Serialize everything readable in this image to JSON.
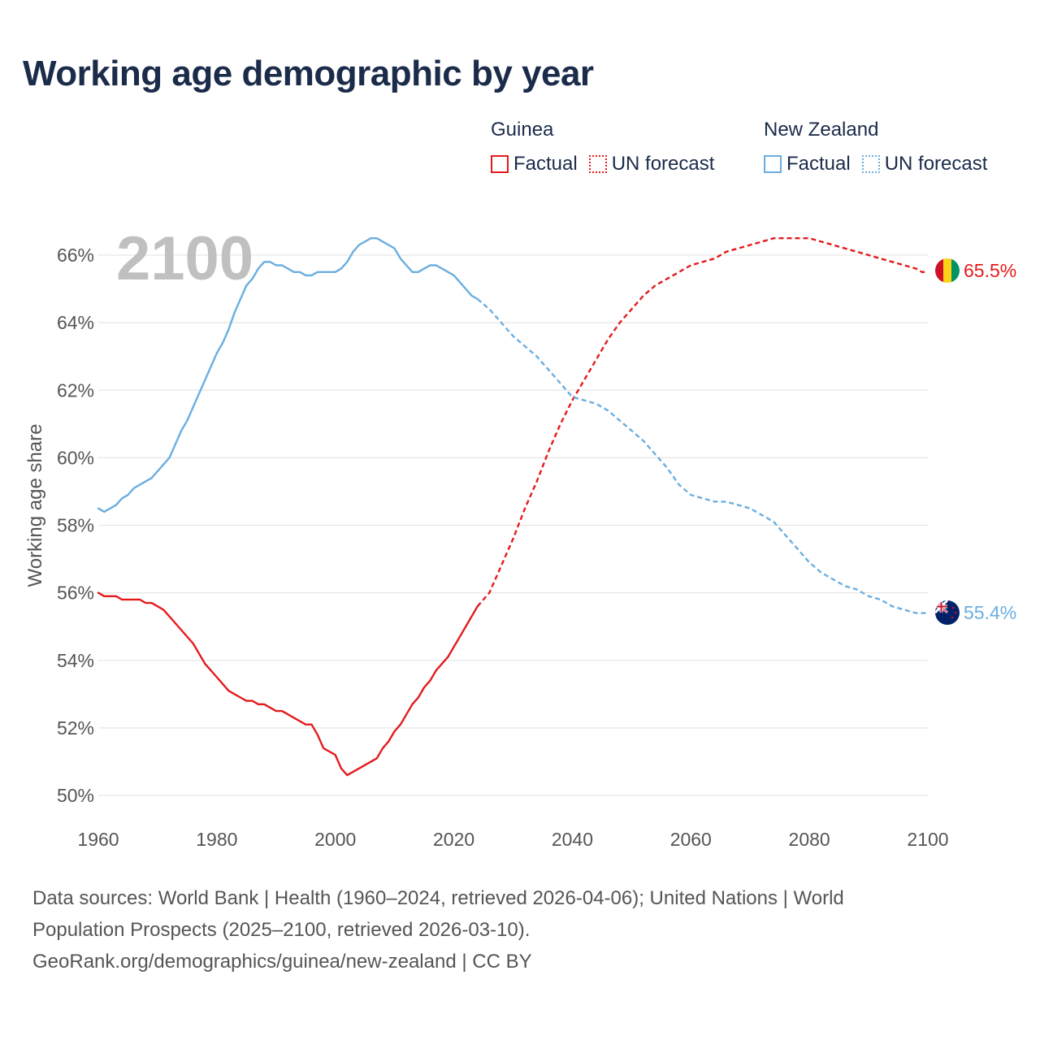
{
  "title": "Working age demographic by year",
  "legend": {
    "guinea": {
      "name": "Guinea",
      "factual": "Factual",
      "forecast": "UN forecast"
    },
    "new_zealand": {
      "name": "New Zealand",
      "factual": "Factual",
      "forecast": "UN forecast"
    }
  },
  "year_label": "2100",
  "sources": {
    "line1": "Data sources: World Bank | Health (1960–2024, retrieved 2026-04-06); United Nations | World",
    "line2": "Population Prospects (2025–2100, retrieved 2026-03-10).",
    "line3": "GeoRank.org/demographics/guinea/new-zealand | CC BY"
  },
  "colors": {
    "guinea": "#e31a1c",
    "new_zealand": "#6aaee0",
    "text": "#1b2b4a",
    "axis_text": "#555555",
    "grid": "#e6e6e6"
  },
  "chart_data": {
    "type": "line",
    "title": "Working age demographic by year",
    "xlabel": "",
    "ylabel": "Working age share",
    "xlim": [
      1960,
      2100
    ],
    "ylim": [
      50,
      67
    ],
    "x_ticks": [
      1960,
      1980,
      2000,
      2020,
      2040,
      2060,
      2080,
      2100
    ],
    "y_ticks": [
      50,
      52,
      54,
      56,
      58,
      60,
      62,
      64,
      66
    ],
    "y_tick_suffix": "%",
    "series": [
      {
        "name": "Guinea",
        "color": "#e31a1c",
        "end_label": "65.5%",
        "flag": "guinea",
        "factual": [
          [
            1960,
            56.0
          ],
          [
            1961,
            55.9
          ],
          [
            1963,
            55.9
          ],
          [
            1964,
            55.8
          ],
          [
            1967,
            55.8
          ],
          [
            1968,
            55.7
          ],
          [
            1969,
            55.7
          ],
          [
            1971,
            55.5
          ],
          [
            1973,
            55.1
          ],
          [
            1976,
            54.5
          ],
          [
            1978,
            53.9
          ],
          [
            1980,
            53.5
          ],
          [
            1982,
            53.1
          ],
          [
            1984,
            52.9
          ],
          [
            1985,
            52.8
          ],
          [
            1986,
            52.8
          ],
          [
            1987,
            52.7
          ],
          [
            1988,
            52.7
          ],
          [
            1990,
            52.5
          ],
          [
            1991,
            52.5
          ],
          [
            1995,
            52.1
          ],
          [
            1996,
            52.1
          ],
          [
            1997,
            51.8
          ],
          [
            1998,
            51.4
          ],
          [
            1999,
            51.3
          ],
          [
            2000,
            51.2
          ],
          [
            2001,
            50.8
          ],
          [
            2002,
            50.6
          ],
          [
            2007,
            51.1
          ],
          [
            2008,
            51.4
          ],
          [
            2009,
            51.6
          ],
          [
            2010,
            51.9
          ],
          [
            2011,
            52.1
          ],
          [
            2012,
            52.4
          ],
          [
            2013,
            52.7
          ],
          [
            2014,
            52.9
          ],
          [
            2015,
            53.2
          ],
          [
            2016,
            53.4
          ],
          [
            2017,
            53.7
          ],
          [
            2019,
            54.1
          ],
          [
            2021,
            54.7
          ],
          [
            2024,
            55.6
          ]
        ],
        "forecast": [
          [
            2024,
            55.6
          ],
          [
            2026,
            56.0
          ],
          [
            2028,
            56.8
          ],
          [
            2030,
            57.6
          ],
          [
            2032,
            58.5
          ],
          [
            2034,
            59.3
          ],
          [
            2036,
            60.2
          ],
          [
            2038,
            61.0
          ],
          [
            2040,
            61.7
          ],
          [
            2042,
            62.3
          ],
          [
            2044,
            62.9
          ],
          [
            2046,
            63.5
          ],
          [
            2048,
            64.0
          ],
          [
            2050,
            64.4
          ],
          [
            2052,
            64.8
          ],
          [
            2054,
            65.1
          ],
          [
            2056,
            65.3
          ],
          [
            2058,
            65.5
          ],
          [
            2060,
            65.7
          ],
          [
            2062,
            65.8
          ],
          [
            2064,
            65.9
          ],
          [
            2066,
            66.1
          ],
          [
            2068,
            66.2
          ],
          [
            2070,
            66.3
          ],
          [
            2072,
            66.4
          ],
          [
            2074,
            66.5
          ],
          [
            2080,
            66.5
          ],
          [
            2082,
            66.4
          ],
          [
            2084,
            66.3
          ],
          [
            2086,
            66.2
          ],
          [
            2088,
            66.1
          ],
          [
            2090,
            66.0
          ],
          [
            2092,
            65.9
          ],
          [
            2094,
            65.8
          ],
          [
            2096,
            65.7
          ],
          [
            2098,
            65.6
          ],
          [
            2099,
            65.5
          ],
          [
            2100,
            65.5
          ]
        ]
      },
      {
        "name": "New Zealand",
        "color": "#6aaee0",
        "end_label": "55.4%",
        "flag": "new-zealand",
        "factual": [
          [
            1960,
            58.5
          ],
          [
            1961,
            58.4
          ],
          [
            1963,
            58.6
          ],
          [
            1964,
            58.8
          ],
          [
            1965,
            58.9
          ],
          [
            1966,
            59.1
          ],
          [
            1967,
            59.2
          ],
          [
            1969,
            59.4
          ],
          [
            1970,
            59.6
          ],
          [
            1971,
            59.8
          ],
          [
            1972,
            60.0
          ],
          [
            1973,
            60.4
          ],
          [
            1974,
            60.8
          ],
          [
            1975,
            61.1
          ],
          [
            1976,
            61.5
          ],
          [
            1977,
            61.9
          ],
          [
            1978,
            62.3
          ],
          [
            1979,
            62.7
          ],
          [
            1980,
            63.1
          ],
          [
            1981,
            63.4
          ],
          [
            1982,
            63.8
          ],
          [
            1983,
            64.3
          ],
          [
            1984,
            64.7
          ],
          [
            1985,
            65.1
          ],
          [
            1986,
            65.3
          ],
          [
            1987,
            65.6
          ],
          [
            1988,
            65.8
          ],
          [
            1989,
            65.8
          ],
          [
            1990,
            65.7
          ],
          [
            1991,
            65.7
          ],
          [
            1993,
            65.5
          ],
          [
            1994,
            65.5
          ],
          [
            1995,
            65.4
          ],
          [
            1996,
            65.4
          ],
          [
            1997,
            65.5
          ],
          [
            2000,
            65.5
          ],
          [
            2001,
            65.6
          ],
          [
            2002,
            65.8
          ],
          [
            2003,
            66.1
          ],
          [
            2004,
            66.3
          ],
          [
            2005,
            66.4
          ],
          [
            2006,
            66.5
          ],
          [
            2007,
            66.5
          ],
          [
            2008,
            66.4
          ],
          [
            2009,
            66.3
          ],
          [
            2010,
            66.2
          ],
          [
            2011,
            65.9
          ],
          [
            2012,
            65.7
          ],
          [
            2013,
            65.5
          ],
          [
            2014,
            65.5
          ],
          [
            2015,
            65.6
          ],
          [
            2016,
            65.7
          ],
          [
            2017,
            65.7
          ],
          [
            2018,
            65.6
          ],
          [
            2020,
            65.4
          ],
          [
            2021,
            65.2
          ],
          [
            2022,
            65.0
          ],
          [
            2023,
            64.8
          ],
          [
            2024,
            64.7
          ]
        ],
        "forecast": [
          [
            2024,
            64.7
          ],
          [
            2026,
            64.4
          ],
          [
            2028,
            64.0
          ],
          [
            2030,
            63.6
          ],
          [
            2032,
            63.3
          ],
          [
            2034,
            63.0
          ],
          [
            2036,
            62.6
          ],
          [
            2038,
            62.2
          ],
          [
            2040,
            61.8
          ],
          [
            2042,
            61.7
          ],
          [
            2044,
            61.6
          ],
          [
            2046,
            61.4
          ],
          [
            2048,
            61.1
          ],
          [
            2050,
            60.8
          ],
          [
            2052,
            60.5
          ],
          [
            2054,
            60.1
          ],
          [
            2056,
            59.7
          ],
          [
            2058,
            59.2
          ],
          [
            2060,
            58.9
          ],
          [
            2062,
            58.8
          ],
          [
            2064,
            58.7
          ],
          [
            2066,
            58.7
          ],
          [
            2068,
            58.6
          ],
          [
            2070,
            58.5
          ],
          [
            2072,
            58.3
          ],
          [
            2074,
            58.1
          ],
          [
            2076,
            57.7
          ],
          [
            2078,
            57.3
          ],
          [
            2080,
            56.9
          ],
          [
            2082,
            56.6
          ],
          [
            2084,
            56.4
          ],
          [
            2086,
            56.2
          ],
          [
            2088,
            56.1
          ],
          [
            2090,
            55.9
          ],
          [
            2092,
            55.8
          ],
          [
            2094,
            55.6
          ],
          [
            2096,
            55.5
          ],
          [
            2098,
            55.4
          ],
          [
            2100,
            55.4
          ]
        ]
      }
    ]
  }
}
